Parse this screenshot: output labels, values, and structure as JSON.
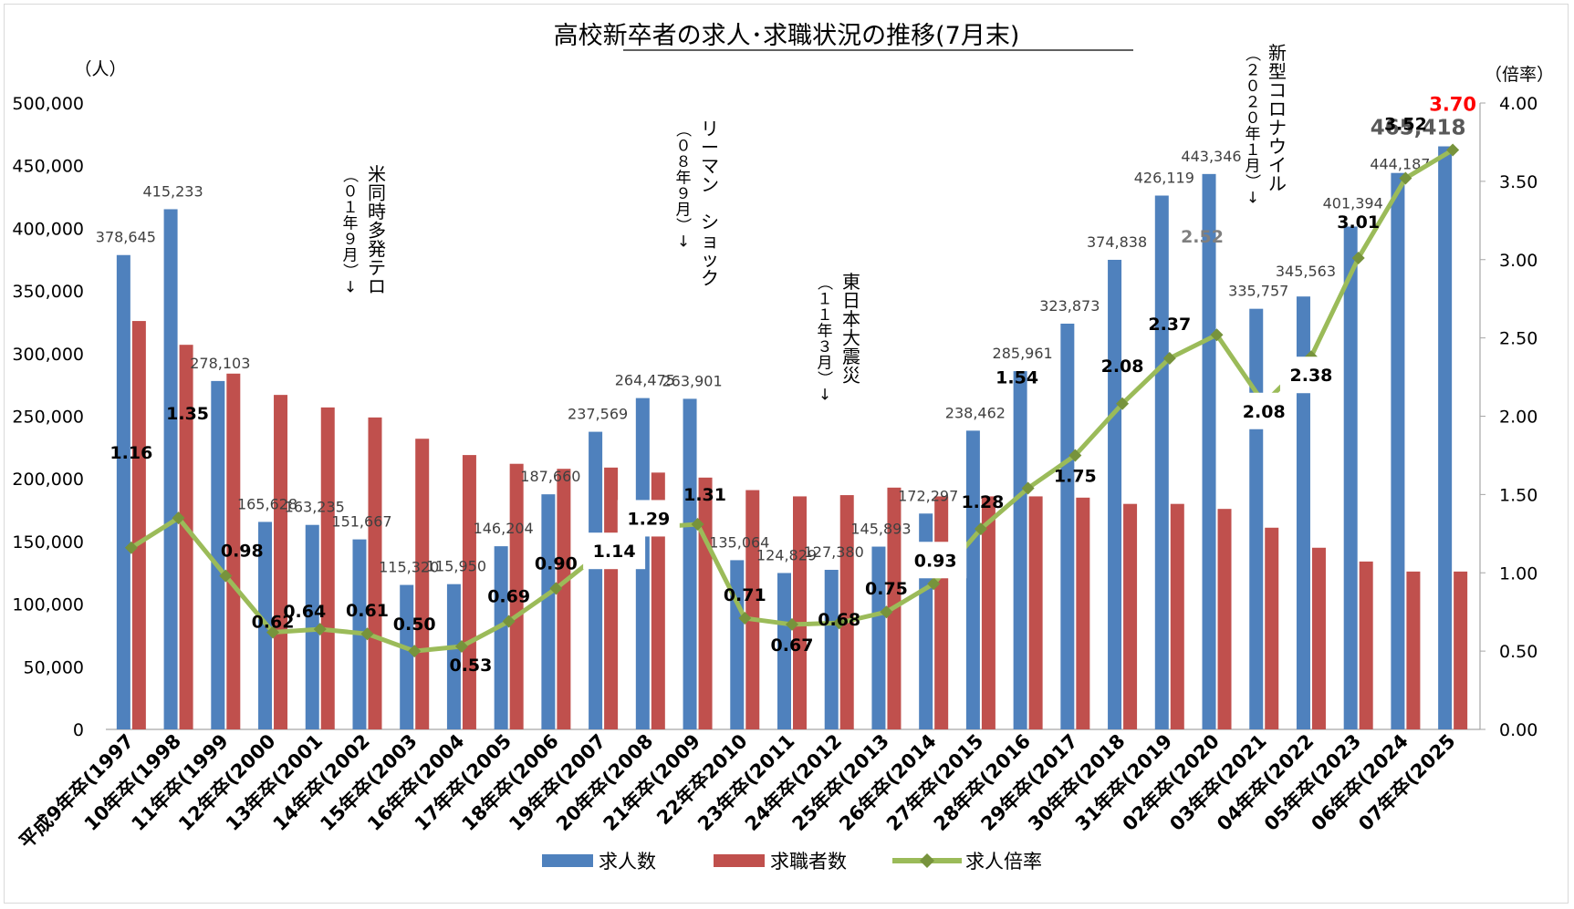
{
  "chart_data": {
    "type": "bar",
    "title": "高校新卒者の求人･求職状況の推移(7月末)",
    "ylabel_left": "（人）",
    "ylabel_right": "（倍率）",
    "ylim_left": [
      0,
      500000
    ],
    "ylim_right": [
      0,
      4
    ],
    "yticks_left": [
      "0",
      "50,000",
      "100,000",
      "150,000",
      "200,000",
      "250,000",
      "300,000",
      "350,000",
      "400,000",
      "450,000",
      "500,000"
    ],
    "yticks_right": [
      "0.00",
      "0.50",
      "1.00",
      "1.50",
      "2.00",
      "2.50",
      "3.00",
      "3.50",
      "4.00"
    ],
    "categories": [
      "平成9年卒(1997",
      "10年卒(1998",
      "11年卒(1999",
      "12年卒(2000",
      "13年卒(2001",
      "14年卒(2002",
      "15年卒(2003",
      "16年卒(2004",
      "17年卒(2005",
      "18年卒(2006",
      "19年卒(2007",
      "20年卒(2008",
      "21年卒(2009",
      "22年卒2010",
      "23年卒(2011",
      "24年卒(2012",
      "25年卒(2013",
      "26年卒(2014",
      "27年卒(2015",
      "28年卒(2016",
      "29年卒(2017",
      "30年卒(2018",
      "31年卒(2019",
      "02年卒(2020",
      "03年卒(2021",
      "04年卒(2022",
      "05年卒(2023",
      "06年卒(2024",
      "07年卒(2025"
    ],
    "series": [
      {
        "name": "求人数",
        "color": "#4f81bd",
        "values": [
          378645,
          415233,
          278103,
          165628,
          163235,
          151667,
          115320,
          115950,
          146204,
          187660,
          237569,
          264475,
          263901,
          135064,
          124829,
          127380,
          145893,
          172297,
          238462,
          285961,
          323873,
          374838,
          426119,
          443346,
          335757,
          345563,
          401394,
          444187,
          465418
        ],
        "labels": [
          "378,645",
          "415,233",
          "278,103",
          "165,628",
          "163,235",
          "151,667",
          "115,320",
          "115,950",
          "146,204",
          "187,660",
          "237,569",
          "264,475",
          "263,901",
          "135,064",
          "124,829",
          "127,380",
          "145,893",
          "172,297",
          "238,462",
          "285,961",
          "323,873",
          "374,838",
          "426,119",
          "443,346",
          "335,757",
          "345,563",
          "401,394",
          "444,187",
          "465,418"
        ]
      },
      {
        "name": "求職者数",
        "color": "#c0504d",
        "values": [
          326000,
          307000,
          284000,
          267000,
          257000,
          249000,
          232000,
          219000,
          212000,
          208000,
          209000,
          205000,
          201000,
          191000,
          186000,
          187000,
          193000,
          186000,
          186000,
          186000,
          185000,
          180000,
          180000,
          176000,
          161000,
          145000,
          134000,
          126000,
          126000
        ]
      },
      {
        "name": "求人倍率",
        "color": "#9bbb59",
        "marker_color": "#77933c",
        "values": [
          1.16,
          1.35,
          0.98,
          0.62,
          0.64,
          0.61,
          0.5,
          0.53,
          0.69,
          0.9,
          1.14,
          1.29,
          1.31,
          0.71,
          0.67,
          0.68,
          0.75,
          0.93,
          1.28,
          1.54,
          1.75,
          2.08,
          2.37,
          2.52,
          2.08,
          2.38,
          3.01,
          3.52,
          3.7
        ],
        "labels": [
          "1.16",
          "1.35",
          "0.98",
          "0.62",
          "0.64",
          "0.61",
          "0.50",
          "0.53",
          "0.69",
          "0.90",
          "1.14",
          "1.29",
          "1.31",
          "0.71",
          "0.67",
          "0.68",
          "0.75",
          "0.93",
          "1.28",
          "1.54",
          "1.75",
          "2.08",
          "2.37",
          "2.52",
          "2.08",
          "2.38",
          "3.01",
          "3.52",
          "3.70"
        ]
      }
    ],
    "annotations": [
      {
        "lines": [
          "米",
          "同",
          "時",
          "多",
          "発",
          "テ",
          "ロ"
        ],
        "sub": [
          "（",
          "０",
          "１",
          "年",
          "９",
          "月",
          "）",
          "↓"
        ]
      },
      {
        "lines": [
          "リ",
          "ー",
          "マ",
          "ン",
          " ",
          "シ",
          "ョ",
          "ッ",
          "ク"
        ],
        "sub": [
          "（",
          "０",
          "８",
          "年",
          "９",
          "月",
          "）",
          "↓"
        ]
      },
      {
        "lines": [
          "東",
          "日",
          "本",
          "大",
          "震",
          "災"
        ],
        "sub": [
          "（",
          "１",
          "１",
          "年",
          "３",
          "月",
          "）",
          "↓"
        ]
      },
      {
        "lines": [
          "新",
          "型",
          "コ",
          "ロ",
          "ナ",
          "ウ",
          "イ",
          "ル"
        ],
        "sub": [
          "（",
          "２",
          "０",
          "２",
          "０",
          "年",
          "１",
          "月",
          "）",
          "↓"
        ]
      }
    ],
    "legend_position": "bottom",
    "grid": false
  }
}
